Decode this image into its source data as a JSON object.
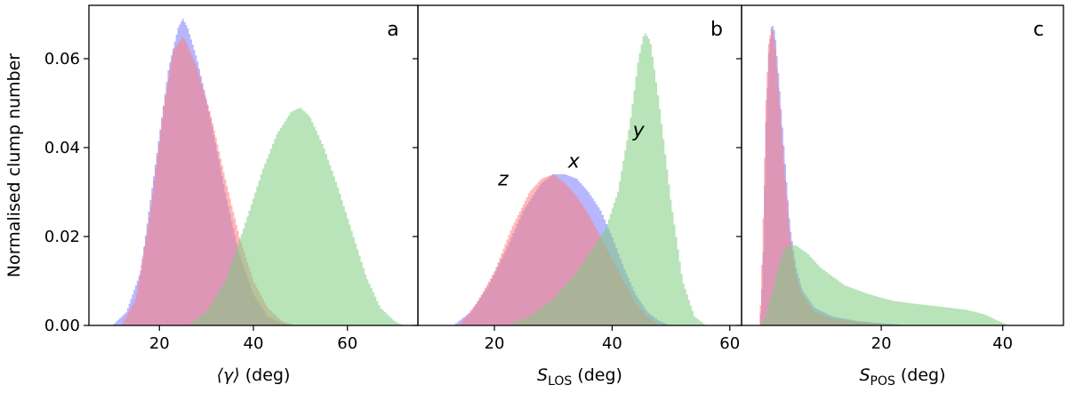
{
  "figure": {
    "ylabel": "Normalised clump number",
    "colors": {
      "x": "#7b7bff",
      "y": "#7fcc7f",
      "z": "#ff7b7b",
      "alpha": 0.55
    }
  },
  "chart_data": [
    {
      "type": "histogram",
      "panel_label": "a",
      "xlabel_main": "⟨γ⟩",
      "xlabel_sub": "",
      "xlabel_unit": " (deg)",
      "xlim": [
        5,
        75
      ],
      "ylim": [
        0,
        0.072
      ],
      "xticks": [
        20,
        40,
        60
      ],
      "yticks": [
        0.0,
        0.02,
        0.04,
        0.06
      ],
      "ytick_labels": [
        "0.00",
        "0.02",
        "0.04",
        "0.06"
      ],
      "show_yticklabels": true,
      "annotations": [],
      "series": [
        {
          "key": "x",
          "dist": [
            [
              10,
              0
            ],
            [
              13,
              0.003
            ],
            [
              16,
              0.012
            ],
            [
              19,
              0.035
            ],
            [
              22,
              0.058
            ],
            [
              24,
              0.067
            ],
            [
              25,
              0.069
            ],
            [
              26,
              0.067
            ],
            [
              28,
              0.06
            ],
            [
              31,
              0.046
            ],
            [
              34,
              0.03
            ],
            [
              37,
              0.016
            ],
            [
              40,
              0.007
            ],
            [
              43,
              0.002
            ],
            [
              46,
              0.0005
            ],
            [
              48,
              0
            ]
          ]
        },
        {
          "key": "z",
          "dist": [
            [
              12,
              0
            ],
            [
              15,
              0.006
            ],
            [
              18,
              0.025
            ],
            [
              21,
              0.05
            ],
            [
              23,
              0.062
            ],
            [
              25,
              0.065
            ],
            [
              26,
              0.063
            ],
            [
              28,
              0.058
            ],
            [
              31,
              0.047
            ],
            [
              34,
              0.033
            ],
            [
              37,
              0.02
            ],
            [
              40,
              0.01
            ],
            [
              43,
              0.004
            ],
            [
              46,
              0.001
            ],
            [
              49,
              0
            ]
          ]
        },
        {
          "key": "y",
          "dist": [
            [
              26,
              0
            ],
            [
              30,
              0.003
            ],
            [
              34,
              0.01
            ],
            [
              38,
              0.022
            ],
            [
              42,
              0.035
            ],
            [
              45,
              0.043
            ],
            [
              48,
              0.048
            ],
            [
              50,
              0.049
            ],
            [
              52,
              0.047
            ],
            [
              55,
              0.04
            ],
            [
              58,
              0.031
            ],
            [
              61,
              0.021
            ],
            [
              64,
              0.011
            ],
            [
              67,
              0.004
            ],
            [
              70,
              0.001
            ],
            [
              72,
              0
            ]
          ]
        }
      ]
    },
    {
      "type": "histogram",
      "panel_label": "b",
      "xlabel_main": "S",
      "xlabel_sub": "LOS",
      "xlabel_unit": " (deg)",
      "xlim": [
        7,
        62
      ],
      "ylim": [
        0,
        0.072
      ],
      "xticks": [
        20,
        40,
        60
      ],
      "yticks": [
        0.0,
        0.02,
        0.04,
        0.06
      ],
      "ytick_labels": [
        "",
        "",
        "",
        ""
      ],
      "show_yticklabels": false,
      "annotations": [
        {
          "text": "z",
          "x": 21.5,
          "y": 0.0315
        },
        {
          "text": "x",
          "x": 33.5,
          "y": 0.0355
        },
        {
          "text": "y",
          "x": 44.5,
          "y": 0.0425
        }
      ],
      "series": [
        {
          "key": "x",
          "dist": [
            [
              13,
              0
            ],
            [
              16,
              0.003
            ],
            [
              19,
              0.009
            ],
            [
              22,
              0.017
            ],
            [
              25,
              0.026
            ],
            [
              28,
              0.032
            ],
            [
              30,
              0.034
            ],
            [
              32,
              0.034
            ],
            [
              34,
              0.033
            ],
            [
              36,
              0.03
            ],
            [
              38,
              0.026
            ],
            [
              40,
              0.02
            ],
            [
              42,
              0.013
            ],
            [
              44,
              0.007
            ],
            [
              46,
              0.003
            ],
            [
              48,
              0.001
            ],
            [
              50,
              0
            ]
          ]
        },
        {
          "key": "z",
          "dist": [
            [
              14,
              0
            ],
            [
              17,
              0.005
            ],
            [
              20,
              0.012
            ],
            [
              23,
              0.022
            ],
            [
              26,
              0.03
            ],
            [
              28,
              0.033
            ],
            [
              30,
              0.034
            ],
            [
              32,
              0.032
            ],
            [
              34,
              0.029
            ],
            [
              36,
              0.025
            ],
            [
              38,
              0.02
            ],
            [
              40,
              0.015
            ],
            [
              42,
              0.01
            ],
            [
              44,
              0.005
            ],
            [
              46,
              0.002
            ],
            [
              48,
              0
            ]
          ]
        },
        {
          "key": "y",
          "dist": [
            [
              22,
              0
            ],
            [
              26,
              0.002
            ],
            [
              30,
              0.006
            ],
            [
              34,
              0.012
            ],
            [
              37,
              0.018
            ],
            [
              39,
              0.022
            ],
            [
              41,
              0.03
            ],
            [
              43,
              0.045
            ],
            [
              44.5,
              0.06
            ],
            [
              45.5,
              0.066
            ],
            [
              46.5,
              0.064
            ],
            [
              48,
              0.05
            ],
            [
              50,
              0.028
            ],
            [
              52,
              0.01
            ],
            [
              54,
              0.002
            ],
            [
              56,
              0
            ]
          ]
        }
      ]
    },
    {
      "type": "histogram",
      "panel_label": "c",
      "xlabel_main": "S",
      "xlabel_sub": "POS",
      "xlabel_unit": " (deg)",
      "xlim": [
        -3,
        50
      ],
      "ylim": [
        0,
        0.072
      ],
      "xticks": [
        20,
        40
      ],
      "yticks": [
        0.0,
        0.02,
        0.04,
        0.06
      ],
      "ytick_labels": [
        "",
        "",
        "",
        ""
      ],
      "show_yticklabels": false,
      "annotations": [],
      "series": [
        {
          "key": "x",
          "dist": [
            [
              0,
              0
            ],
            [
              0.5,
              0.012
            ],
            [
              1,
              0.045
            ],
            [
              1.5,
              0.062
            ],
            [
              2,
              0.068
            ],
            [
              2.5,
              0.066
            ],
            [
              3,
              0.058
            ],
            [
              4,
              0.04
            ],
            [
              5,
              0.022
            ],
            [
              6,
              0.013
            ],
            [
              7,
              0.008
            ],
            [
              9,
              0.004
            ],
            [
              12,
              0.002
            ],
            [
              16,
              0.001
            ],
            [
              20,
              0.0005
            ],
            [
              25,
              0
            ]
          ]
        },
        {
          "key": "z",
          "dist": [
            [
              0,
              0
            ],
            [
              0.5,
              0.02
            ],
            [
              1,
              0.05
            ],
            [
              1.5,
              0.064
            ],
            [
              2,
              0.067
            ],
            [
              2.5,
              0.064
            ],
            [
              3,
              0.055
            ],
            [
              4,
              0.036
            ],
            [
              5,
              0.02
            ],
            [
              6,
              0.011
            ],
            [
              7,
              0.007
            ],
            [
              9,
              0.003
            ],
            [
              12,
              0.0015
            ],
            [
              16,
              0.0008
            ],
            [
              20,
              0.0003
            ],
            [
              25,
              0
            ]
          ]
        },
        {
          "key": "y",
          "dist": [
            [
              0,
              0
            ],
            [
              1,
              0.002
            ],
            [
              2,
              0.007
            ],
            [
              3,
              0.013
            ],
            [
              4,
              0.017
            ],
            [
              5,
              0.018
            ],
            [
              6,
              0.018
            ],
            [
              8,
              0.016
            ],
            [
              10,
              0.013
            ],
            [
              14,
              0.009
            ],
            [
              18,
              0.007
            ],
            [
              22,
              0.0055
            ],
            [
              26,
              0.0048
            ],
            [
              30,
              0.0042
            ],
            [
              34,
              0.0035
            ],
            [
              37,
              0.0025
            ],
            [
              39,
              0.0012
            ],
            [
              41,
              0
            ]
          ]
        }
      ]
    }
  ]
}
